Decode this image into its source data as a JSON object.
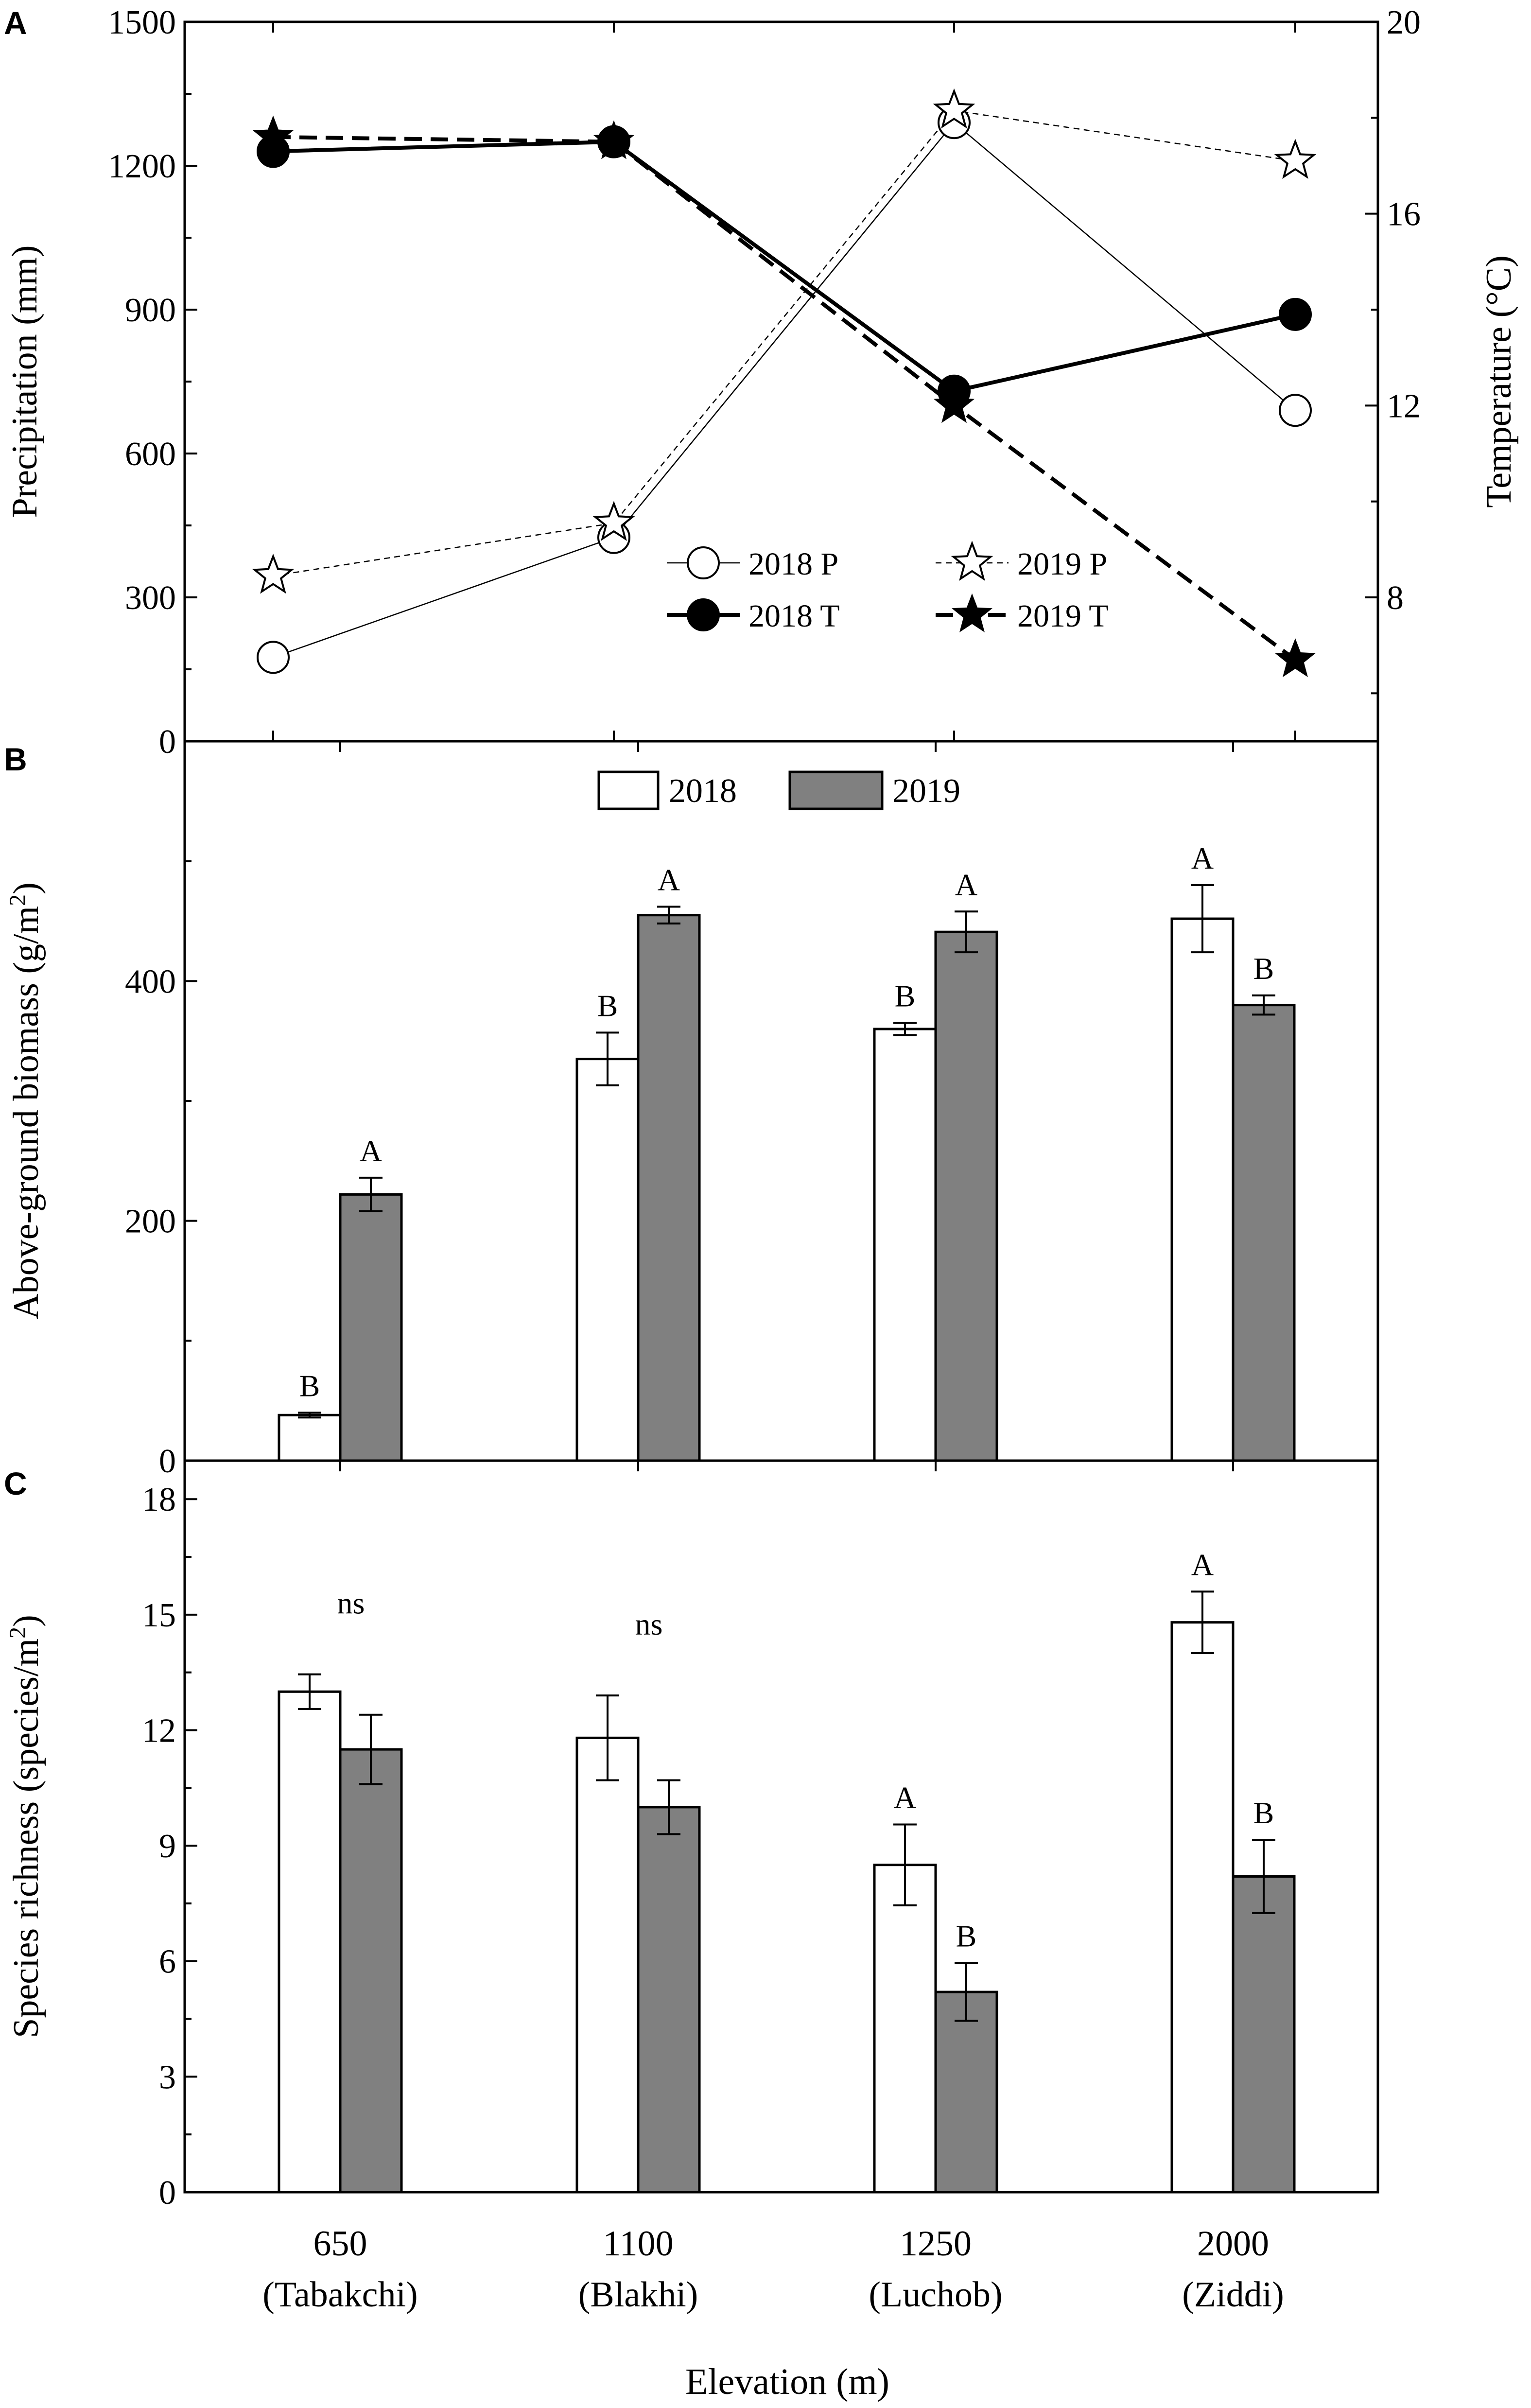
{
  "colors": {
    "bar_2018": "#ffffff",
    "bar_2019": "#808080",
    "axis": "#000000"
  },
  "chart_data": [
    {
      "panel": "A",
      "type": "line",
      "categories": [
        "650",
        "1100",
        "1250",
        "2000"
      ],
      "xlabel": "",
      "ylabel": "Precipitation (mm)",
      "ylim": [
        0,
        1500
      ],
      "yticks": [
        "0",
        "300",
        "600",
        "900",
        "1200",
        "1500"
      ],
      "y2label": "Temperature (°C)",
      "y2lim": [
        5,
        20
      ],
      "y2ticks": [
        "8",
        "12",
        "16",
        "20"
      ],
      "series": [
        {
          "name": "2018 P",
          "axis": "left",
          "marker": "open-circle",
          "line": "thin-solid",
          "values": [
            175,
            425,
            1290,
            690
          ]
        },
        {
          "name": "2019 P",
          "axis": "left",
          "marker": "open-star",
          "line": "thin-dash",
          "values": [
            345,
            455,
            1315,
            1210
          ]
        },
        {
          "name": "2018 T",
          "axis": "right",
          "marker": "filled-circle",
          "line": "thick-solid",
          "values": [
            17.3,
            17.5,
            12.3,
            13.9
          ]
        },
        {
          "name": "2019 T",
          "axis": "right",
          "marker": "filled-star",
          "line": "thick-dash",
          "values": [
            17.6,
            17.5,
            12.0,
            6.7
          ]
        }
      ],
      "legend": [
        {
          "label": "2018 P",
          "series": 0
        },
        {
          "label": "2019 P",
          "series": 1
        },
        {
          "label": "2018 T",
          "series": 2
        },
        {
          "label": "2019 T",
          "series": 3
        }
      ]
    },
    {
      "panel": "B",
      "type": "bar",
      "categories": [
        "650",
        "1100",
        "1250",
        "2000"
      ],
      "ylabel": "Above-ground biomass  (g/m",
      "ylabel_sup": "2",
      "ylabel_end": ")",
      "ylim": [
        0,
        600
      ],
      "yticks": [
        "0",
        "200",
        "400"
      ],
      "series": [
        {
          "name": "2018",
          "values": [
            38,
            335,
            360,
            452
          ],
          "errors": [
            2,
            22,
            5,
            28
          ],
          "letters": [
            "B",
            "B",
            "B",
            "A"
          ]
        },
        {
          "name": "2019",
          "values": [
            222,
            455,
            441,
            380
          ],
          "errors": [
            14,
            7,
            17,
            8
          ],
          "letters": [
            "A",
            "A",
            "A",
            "B"
          ]
        }
      ],
      "legend": [
        "2018",
        "2019"
      ]
    },
    {
      "panel": "C",
      "type": "bar",
      "categories": [
        "650",
        "1100",
        "1250",
        "2000"
      ],
      "category_sublabels": [
        "(Tabakchi)",
        "(Blakhi)",
        "(Luchob)",
        "(Ziddi)"
      ],
      "xlabel": "Elevation (m)",
      "ylabel": "Species richness  (species/m",
      "ylabel_sup": "2",
      "ylabel_end": ")",
      "ylim": [
        0,
        19
      ],
      "yticks": [
        "0",
        "3",
        "6",
        "9",
        "12",
        "15",
        "18"
      ],
      "series": [
        {
          "name": "2018",
          "values": [
            13.0,
            11.8,
            8.5,
            14.8
          ],
          "errors": [
            0.45,
            1.1,
            1.05,
            0.8
          ]
        },
        {
          "name": "2019",
          "values": [
            11.5,
            10.0,
            5.2,
            8.2
          ],
          "errors": [
            0.9,
            0.7,
            0.75,
            0.95
          ]
        }
      ],
      "group_labels": [
        "ns",
        "ns",
        "",
        ""
      ],
      "bar_letters": [
        {
          "category": 2,
          "series": 0,
          "text": "A"
        },
        {
          "category": 2,
          "series": 1,
          "text": "B"
        },
        {
          "category": 3,
          "series": 0,
          "text": "A"
        },
        {
          "category": 3,
          "series": 1,
          "text": "B"
        }
      ]
    }
  ]
}
